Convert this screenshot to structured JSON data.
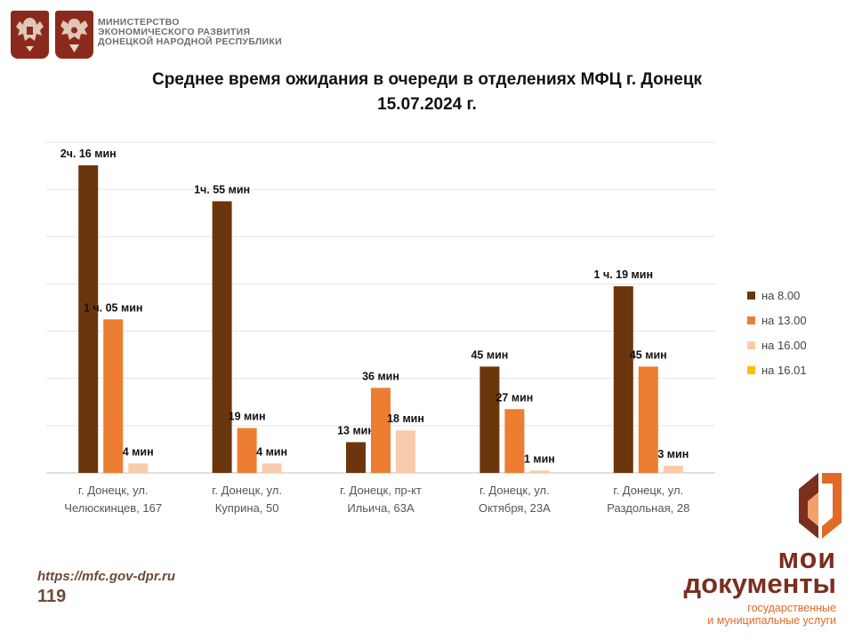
{
  "header": {
    "ministry_lines": [
      "МИНИСТЕРСТВО",
      "ЭКОНОМИЧЕСКОГО РАЗВИТИЯ",
      "ДОНЕЦКОЙ НАРОДНОЙ РЕСПУБЛИКИ"
    ],
    "emblems": [
      "russia-coat-of-arms-icon",
      "dpr-coat-of-arms-icon"
    ]
  },
  "title_lines": [
    "Среднее время ожидания в очереди в отделениях МФЦ г. Донецк",
    "15.07.2024 г."
  ],
  "chart_data": {
    "type": "bar",
    "title": "Среднее время ожидания в очереди в отделениях МФЦ г. Донецк 15.07.2024 г.",
    "xlabel": "",
    "ylabel": "",
    "value_unit": "минуты",
    "ylim": [
      0,
      140
    ],
    "grid": true,
    "legend_position": "right",
    "categories": [
      [
        "г. Донецк, ул.",
        "Челюскинцев, 167"
      ],
      [
        "г. Донецк, ул.",
        "Куприна, 50"
      ],
      [
        "г. Донецк, пр-кт",
        "Ильича, 63А"
      ],
      [
        "г. Донецк, ул.",
        "Октября, 23А"
      ],
      [
        "г. Донецк, ул.",
        "Раздольная, 28"
      ]
    ],
    "series": [
      {
        "name": "на 8.00",
        "color": "#6b360d",
        "values": [
          136,
          115,
          13,
          45,
          79
        ],
        "labels": [
          "2ч. 16 мин",
          "1ч. 55 мин",
          "13 мин",
          "45 мин",
          "1 ч. 19 мин"
        ]
      },
      {
        "name": "на 13.00",
        "color": "#ed7d31",
        "values": [
          65,
          19,
          36,
          27,
          45
        ],
        "labels": [
          "1 ч. 05 мин",
          "19 мин",
          "36 мин",
          "27 мин",
          "45 мин"
        ]
      },
      {
        "name": "на 16.00",
        "color": "#f8cbad",
        "values": [
          4,
          4,
          18,
          1,
          3
        ],
        "labels": [
          "4 мин",
          "4 мин",
          "18 мин",
          "1 мин",
          "3 мин"
        ]
      },
      {
        "name": "на 16.01",
        "color": "#ffc000",
        "values": [
          null,
          null,
          null,
          null,
          null
        ],
        "labels": [
          "",
          "",
          "",
          "",
          ""
        ]
      }
    ],
    "note": "Bars are visually capped at the top of the plot area for values exceeding the axis range."
  },
  "footer": {
    "url": "https://mfc.gov-dpr.ru",
    "page_number": "119"
  },
  "logo": {
    "line1": "мои",
    "line2": "документы",
    "sub_lines": [
      "государственные",
      "и муниципальные услуги"
    ],
    "mark_icon": "moi-dokumenty-logo-icon",
    "colors": {
      "brown": "#7a2f1f",
      "orange": "#e06a27"
    }
  }
}
